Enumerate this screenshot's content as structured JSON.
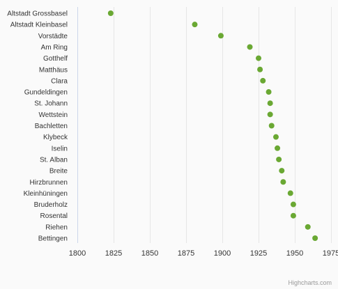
{
  "chart_data": {
    "type": "scatter",
    "title": "",
    "xlabel": "",
    "ylabel": "",
    "categories": [
      "Altstadt Grossbasel",
      "Altstadt Kleinbasel",
      "Vorstädte",
      "Am Ring",
      "Gotthelf",
      "Matthäus",
      "Clara",
      "Gundeldingen",
      "St. Johann",
      "Wettstein",
      "Bachletten",
      "Klybeck",
      "Iselin",
      "St. Alban",
      "Breite",
      "Hirzbrunnen",
      "Kleinhüningen",
      "Bruderholz",
      "Rosental",
      "Riehen",
      "Bettingen"
    ],
    "values": [
      1823,
      1881,
      1899,
      1919,
      1925,
      1926,
      1928,
      1932,
      1933,
      1933,
      1934,
      1937,
      1938,
      1939,
      1941,
      1942,
      1947,
      1949,
      1949,
      1959,
      1964
    ],
    "xlim": [
      1800,
      1975
    ],
    "xticks": [
      1800,
      1825,
      1850,
      1875,
      1900,
      1925,
      1950,
      1975
    ],
    "grid": true,
    "legend": "none",
    "colors": {
      "point": "#6aa833",
      "grid": "#e6e6e6",
      "axis": "#ccd6eb",
      "background": "#fafafa"
    }
  },
  "credits": {
    "label": "Highcharts.com"
  }
}
